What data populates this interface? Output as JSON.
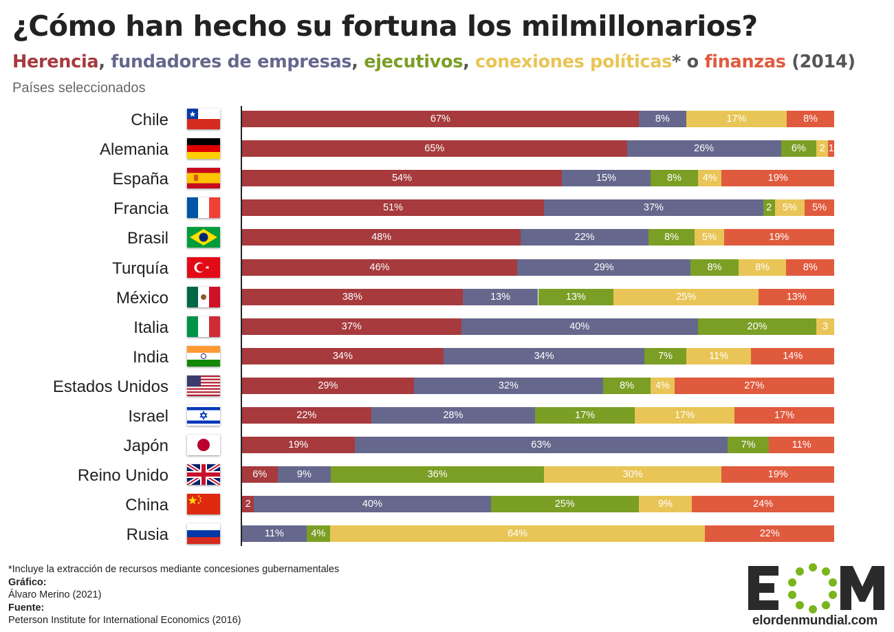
{
  "title": "¿Cómo han hecho su fortuna los milmillonarios?",
  "subtitle": {
    "herencia": "Herencia",
    "sep1": ", ",
    "fundadores": "fundadores de empresas",
    "sep2": ", ",
    "ejecutivos": "ejecutivos",
    "sep3": ", ",
    "politicas": "conexiones políticas",
    "sep4": "* o ",
    "finanzas": "finanzas",
    "year": " (2014)"
  },
  "note": "Países seleccionados",
  "colors": {
    "herencia": "#a63a3d",
    "fundadores": "#65678c",
    "ejecutivos": "#7b9e25",
    "politicas": "#e8c556",
    "finanzas": "#e05a3e"
  },
  "chart_data": {
    "type": "bar",
    "orientation": "horizontal",
    "stacked": true,
    "categories": [
      "Chile",
      "Alemania",
      "España",
      "Francia",
      "Brasil",
      "Turquía",
      "México",
      "Italia",
      "India",
      "Estados Unidos",
      "Israel",
      "Japón",
      "Reino Unido",
      "China",
      "Rusia"
    ],
    "series": [
      {
        "key": "herencia",
        "values": [
          67,
          65,
          54,
          51,
          48,
          46,
          38,
          37,
          34,
          29,
          22,
          19,
          6,
          2,
          0
        ],
        "labels": [
          "67%",
          "65%",
          "54%",
          "51%",
          "48%",
          "46%",
          "38%",
          "37%",
          "34%",
          "29%",
          "22%",
          "19%",
          "6%",
          "2",
          ""
        ]
      },
      {
        "key": "fundadores",
        "values": [
          8,
          26,
          15,
          37,
          22,
          29,
          13,
          40,
          34,
          32,
          28,
          63,
          9,
          40,
          11
        ],
        "labels": [
          "8%",
          "26%",
          "15%",
          "37%",
          "22%",
          "29%",
          "13%",
          "40%",
          "34%",
          "32%",
          "28%",
          "63%",
          "9%",
          "40%",
          "11%"
        ]
      },
      {
        "key": "ejecutivos",
        "values": [
          0,
          6,
          8,
          2,
          8,
          8,
          13,
          20,
          7,
          8,
          17,
          7,
          36,
          25,
          4
        ],
        "labels": [
          "",
          "6%",
          "8%",
          "2",
          "8%",
          "8%",
          "13%",
          "20%",
          "7%",
          "8%",
          "17%",
          "7%",
          "36%",
          "25%",
          "4%"
        ]
      },
      {
        "key": "politicas",
        "values": [
          17,
          2,
          4,
          5,
          5,
          8,
          25,
          3,
          11,
          4,
          17,
          0,
          30,
          9,
          64
        ],
        "labels": [
          "17%",
          "2",
          "4%",
          "5%",
          "5%",
          "8%",
          "25%",
          "3",
          "11%",
          "4%",
          "17%",
          "",
          "30%",
          "9%",
          "64%"
        ]
      },
      {
        "key": "finanzas",
        "values": [
          8,
          1,
          19,
          5,
          19,
          8,
          13,
          0,
          14,
          27,
          17,
          11,
          19,
          24,
          22
        ],
        "labels": [
          "8%",
          "1",
          "19%",
          "5%",
          "19%",
          "8%",
          "13%",
          "",
          "14%",
          "27%",
          "17%",
          "11%",
          "19%",
          "24%",
          "22%"
        ]
      }
    ],
    "flags": [
      "chile",
      "germany",
      "spain",
      "france",
      "brazil",
      "turkey",
      "mexico",
      "italy",
      "india",
      "usa",
      "israel",
      "japan",
      "uk",
      "china",
      "russia"
    ],
    "legend": "none",
    "grid": false
  },
  "footnote": "*Incluye la extracción de recursos mediante concesiones gubernamentales",
  "credit_label": "Gráfico:",
  "credit": "Álvaro Merino (2021)",
  "source_label": "Fuente:",
  "source": "Peterson Institute for International Economics (2016)",
  "logo_text": "elordenmundial.com"
}
